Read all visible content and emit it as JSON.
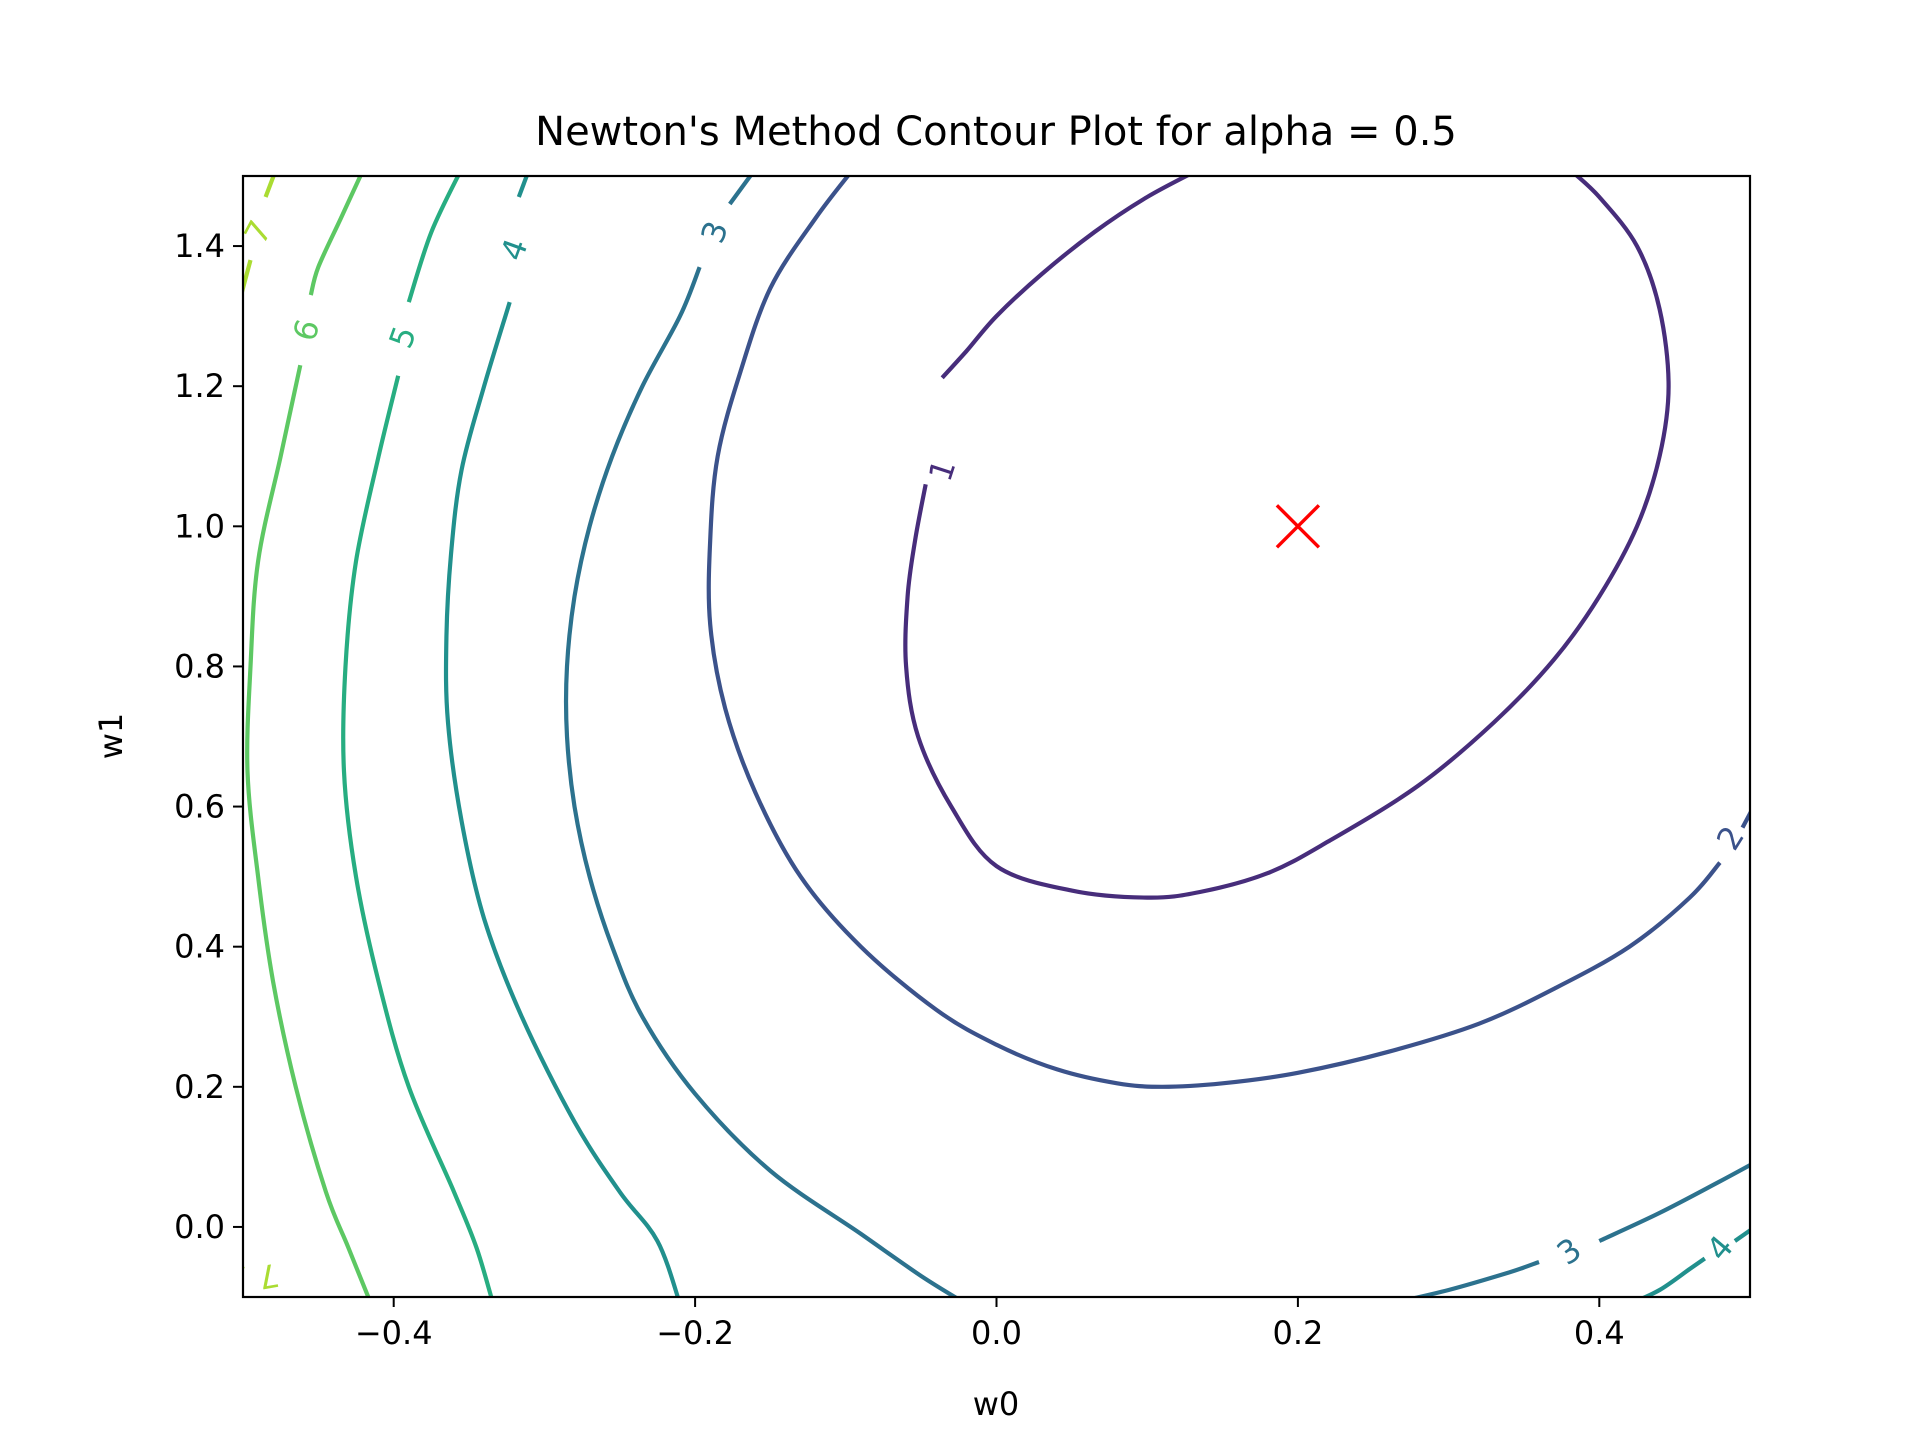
{
  "chart_data": {
    "type": "contour",
    "title": "Newton's Method Contour Plot for alpha = 0.5",
    "xlabel": "w0",
    "ylabel": "w1",
    "xlim": [
      -0.5,
      0.5
    ],
    "ylim": [
      -0.1,
      1.5
    ],
    "x_ticks": [
      {
        "value": -0.4,
        "label": "−0.4"
      },
      {
        "value": -0.2,
        "label": "−0.2"
      },
      {
        "value": 0.0,
        "label": "0.0"
      },
      {
        "value": 0.2,
        "label": "0.2"
      },
      {
        "value": 0.4,
        "label": "0.4"
      }
    ],
    "y_ticks": [
      {
        "value": 0.0,
        "label": "0.0"
      },
      {
        "value": 0.2,
        "label": "0.2"
      },
      {
        "value": 0.4,
        "label": "0.4"
      },
      {
        "value": 0.6,
        "label": "0.6"
      },
      {
        "value": 0.8,
        "label": "0.8"
      },
      {
        "value": 1.0,
        "label": "1.0"
      },
      {
        "value": 1.2,
        "label": "1.2"
      },
      {
        "value": 1.4,
        "label": "1.4"
      }
    ],
    "grid": false,
    "levels": [
      {
        "level": 1,
        "label": "1",
        "color": "#472d7b",
        "points": [
          [
            -0.036,
            1.212
          ],
          [
            0.0,
            1.3
          ],
          [
            0.065,
            1.5
          ],
          [
            0.0,
            1.5
          ],
          [
            0.38,
            1.5
          ],
          [
            0.43,
            1.4
          ],
          [
            0.45,
            1.2
          ],
          [
            0.44,
            1.0
          ],
          [
            0.39,
            0.8
          ],
          [
            0.33,
            0.64
          ],
          [
            0.26,
            0.52
          ],
          [
            0.135,
            0.395
          ],
          [
            0.0,
            0.43
          ],
          [
            -0.04,
            0.55
          ],
          [
            -0.06,
            0.75
          ],
          [
            -0.059,
            0.9
          ],
          [
            -0.052,
            1.0
          ],
          [
            -0.047,
            1.08
          ]
        ],
        "label_pos": [
          -0.036,
          1.08
        ]
      }
    ],
    "marker": {
      "x": 0.2,
      "y": 1.0,
      "symbol": "x",
      "color": "#ff0000"
    }
  }
}
